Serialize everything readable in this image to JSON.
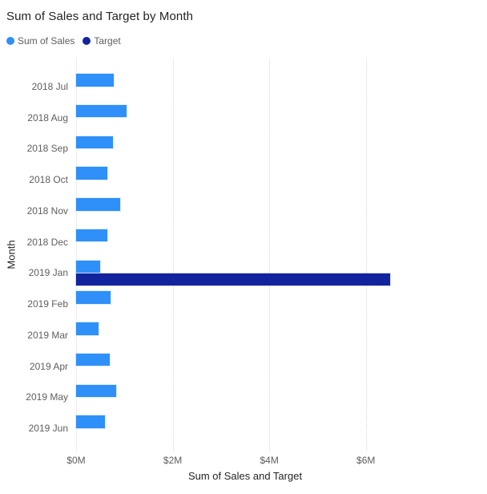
{
  "chart_data": {
    "type": "bar",
    "orientation": "horizontal",
    "title": "Sum of Sales and Target by Month",
    "xlabel": "Sum of Sales and Target",
    "ylabel": "Month",
    "categories": [
      "2018 Jul",
      "2018 Aug",
      "2018 Sep",
      "2018 Oct",
      "2018 Nov",
      "2018 Dec",
      "2019 Jan",
      "2019 Feb",
      "2019 Mar",
      "2019 Apr",
      "2019 May",
      "2019 Jun"
    ],
    "series": [
      {
        "name": "Sum of Sales",
        "color": "#2E90F8",
        "values": [
          0.78,
          1.05,
          0.77,
          0.64,
          0.91,
          0.64,
          0.5,
          0.71,
          0.47,
          0.7,
          0.83,
          0.59
        ]
      },
      {
        "name": "Target",
        "color": "#12239E",
        "values": [
          null,
          null,
          null,
          null,
          null,
          null,
          6.5,
          null,
          null,
          null,
          null,
          null
        ]
      }
    ],
    "value_unit": "$M",
    "xlim": [
      0,
      7
    ],
    "x_ticks": [
      {
        "value": 0,
        "label": "$0M"
      },
      {
        "value": 2,
        "label": "$2M"
      },
      {
        "value": 4,
        "label": "$4M"
      },
      {
        "value": 6,
        "label": "$6M"
      }
    ],
    "gridlines": "vertical-dotted",
    "legend_position": "top-left"
  }
}
